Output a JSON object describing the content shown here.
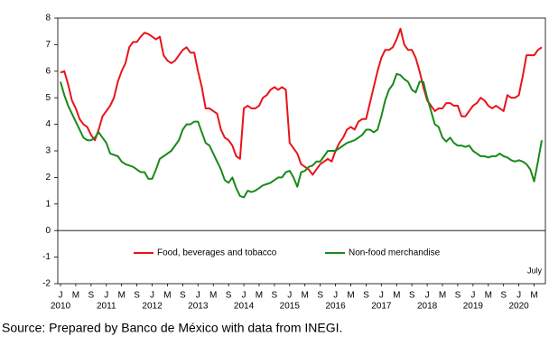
{
  "chart_data": {
    "type": "line",
    "categories": [
      "J",
      null,
      null,
      null,
      "M",
      null,
      null,
      null,
      "S",
      null,
      null,
      null,
      "J",
      null,
      null,
      null,
      "M",
      null,
      null,
      null,
      "S",
      null,
      null,
      null,
      "J",
      null,
      null,
      null,
      "M",
      null,
      null,
      null,
      "S",
      null,
      null,
      null,
      "J",
      null,
      null,
      null,
      "M",
      null,
      null,
      null,
      "S",
      null,
      null,
      null,
      "J",
      null,
      null,
      null,
      "M",
      null,
      null,
      null,
      "S",
      null,
      null,
      null,
      "J",
      null,
      null,
      null,
      "M",
      null,
      null,
      null,
      "S",
      null,
      null,
      null,
      "J",
      null,
      null,
      null,
      "M",
      null,
      null,
      null,
      "S",
      null,
      null,
      null,
      "J",
      null,
      null,
      null,
      "M",
      null,
      null,
      null,
      "S",
      null,
      null,
      null,
      "J",
      null,
      null,
      null,
      "M",
      null,
      null,
      null,
      "S",
      null,
      null,
      null,
      "J",
      null,
      null,
      null,
      "M",
      null,
      null,
      null,
      "S",
      null,
      null,
      null,
      "J",
      null,
      null,
      null,
      "M",
      null,
      null
    ],
    "years": [
      "2010",
      "2011",
      "2012",
      "2013",
      "2014",
      "2015",
      "2016",
      "2017",
      "2018",
      "2019",
      "2020"
    ],
    "series": [
      {
        "name": "Food, beverages and tobacco",
        "color": "#e8141a",
        "values": [
          5.95,
          6.0,
          5.5,
          4.9,
          4.6,
          4.2,
          4.0,
          3.9,
          3.6,
          3.4,
          3.8,
          4.3,
          4.5,
          4.7,
          5.0,
          5.6,
          6.0,
          6.3,
          6.9,
          7.1,
          7.1,
          7.3,
          7.45,
          7.4,
          7.3,
          7.2,
          7.3,
          6.6,
          6.4,
          6.3,
          6.4,
          6.6,
          6.8,
          6.9,
          6.7,
          6.7,
          6.0,
          5.4,
          4.6,
          4.6,
          4.5,
          4.4,
          3.8,
          3.5,
          3.4,
          3.2,
          2.8,
          2.7,
          4.6,
          4.7,
          4.6,
          4.6,
          4.7,
          5.0,
          5.1,
          5.3,
          5.4,
          5.3,
          5.4,
          5.3,
          3.3,
          3.1,
          2.9,
          2.5,
          2.4,
          2.3,
          2.1,
          2.3,
          2.5,
          2.6,
          2.7,
          2.6,
          3.0,
          3.3,
          3.5,
          3.8,
          3.9,
          3.8,
          4.1,
          4.2,
          4.2,
          4.8,
          5.4,
          6.0,
          6.5,
          6.8,
          6.8,
          6.9,
          7.2,
          7.6,
          7.0,
          6.8,
          6.8,
          6.5,
          6.0,
          5.4,
          4.9,
          4.7,
          4.5,
          4.6,
          4.6,
          4.8,
          4.8,
          4.7,
          4.7,
          4.3,
          4.3,
          4.5,
          4.7,
          4.8,
          5.0,
          4.9,
          4.7,
          4.6,
          4.7,
          4.6,
          4.5,
          5.1,
          5.0,
          5.0,
          5.1,
          5.8,
          6.6,
          6.6,
          6.6,
          6.8,
          6.9
        ]
      },
      {
        "name": "Non-food merchandise",
        "color": "#1a8a1a",
        "values": [
          5.6,
          5.1,
          4.7,
          4.4,
          4.1,
          3.8,
          3.5,
          3.4,
          3.4,
          3.5,
          3.7,
          3.5,
          3.3,
          2.9,
          2.85,
          2.8,
          2.6,
          2.5,
          2.45,
          2.4,
          2.3,
          2.2,
          2.2,
          1.95,
          1.95,
          2.3,
          2.7,
          2.8,
          2.9,
          3.0,
          3.2,
          3.4,
          3.8,
          4.0,
          4.0,
          4.1,
          4.1,
          3.7,
          3.3,
          3.2,
          2.9,
          2.6,
          2.3,
          1.9,
          1.8,
          2.0,
          1.6,
          1.3,
          1.25,
          1.5,
          1.45,
          1.5,
          1.6,
          1.7,
          1.75,
          1.8,
          1.9,
          2.0,
          2.0,
          2.2,
          2.25,
          2.0,
          1.65,
          2.2,
          2.25,
          2.4,
          2.45,
          2.6,
          2.6,
          2.8,
          3.0,
          3.0,
          3.0,
          3.1,
          3.2,
          3.3,
          3.35,
          3.4,
          3.5,
          3.6,
          3.8,
          3.8,
          3.7,
          3.8,
          4.3,
          4.9,
          5.3,
          5.5,
          5.9,
          5.85,
          5.7,
          5.6,
          5.3,
          5.2,
          5.6,
          5.6,
          5.0,
          4.5,
          4.0,
          3.9,
          3.5,
          3.35,
          3.5,
          3.3,
          3.2,
          3.2,
          3.15,
          3.2,
          3.0,
          2.9,
          2.8,
          2.8,
          2.75,
          2.8,
          2.8,
          2.9,
          2.8,
          2.75,
          2.65,
          2.6,
          2.65,
          2.6,
          2.5,
          2.3,
          1.85,
          2.6,
          3.4
        ]
      }
    ],
    "ylim": [
      -2,
      8
    ],
    "yticks": [
      -2,
      -1,
      0,
      1,
      2,
      3,
      4,
      5,
      6,
      7,
      8
    ],
    "annotation": "July",
    "source": "Source: Prepared by Banco de México with data from INEGI."
  }
}
